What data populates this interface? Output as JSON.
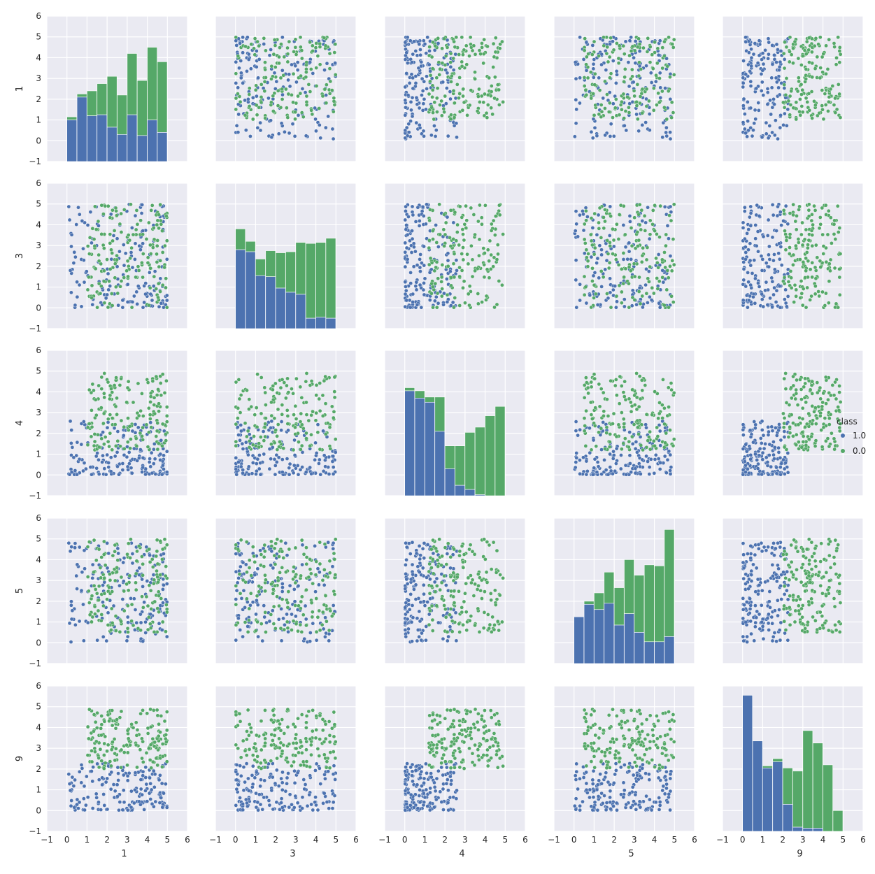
{
  "chart_data": {
    "type": "scatter",
    "title": "",
    "variables": [
      "1",
      "3",
      "4",
      "5",
      "9"
    ],
    "axis_labels": [
      "1",
      "3",
      "4",
      "5",
      "9"
    ],
    "tick_labels": [
      "−1",
      "0",
      "1",
      "2",
      "3",
      "4",
      "5",
      "6"
    ],
    "xlim": [
      -1,
      6
    ],
    "ylim": [
      -1,
      6
    ],
    "grid": true,
    "colors": {
      "class_1": "#4C72B0",
      "class_0": "#55A868",
      "background": "#EAEAF2",
      "grid": "#ffffff"
    },
    "legend": {
      "title": "class",
      "placement": "right",
      "entries": [
        {
          "label": "1.0",
          "color": "#4C72B0"
        },
        {
          "label": "0.0",
          "color": "#55A868"
        }
      ]
    },
    "diagonal_type": "stacked-histogram",
    "histograms": [
      {
        "variable": "1",
        "bins": [
          0.0,
          0.5,
          1.0,
          1.5,
          2.0,
          2.5,
          3.0,
          3.5,
          4.0,
          4.5
        ],
        "class_1": [
          1.0,
          2.1,
          1.2,
          1.25,
          0.65,
          0.3,
          1.25,
          0.25,
          1.0,
          0.4
        ],
        "class_0": [
          0.15,
          0.15,
          1.2,
          1.5,
          2.45,
          1.9,
          2.95,
          2.65,
          3.5,
          3.4
        ]
      },
      {
        "variable": "3",
        "bins": [
          0.0,
          0.5,
          1.0,
          1.5,
          2.0,
          2.5,
          3.0,
          3.5,
          4.0,
          4.5
        ],
        "class_1": [
          2.8,
          2.7,
          1.55,
          1.5,
          0.95,
          0.75,
          0.65,
          -0.5,
          -0.45,
          -0.5
        ],
        "class_0": [
          1.0,
          0.5,
          0.8,
          1.25,
          1.7,
          1.95,
          2.5,
          3.6,
          3.6,
          3.85
        ]
      },
      {
        "variable": "4",
        "bins": [
          0.0,
          0.5,
          1.0,
          1.5,
          2.0,
          2.5,
          3.0,
          3.5,
          4.0,
          4.5
        ],
        "class_1": [
          4.05,
          3.7,
          3.5,
          2.1,
          0.3,
          -0.5,
          -0.7,
          -0.95,
          -1.0,
          -1.0
        ],
        "class_0": [
          0.15,
          0.35,
          0.25,
          1.65,
          1.1,
          1.9,
          2.75,
          3.25,
          3.85,
          4.3
        ]
      },
      {
        "variable": "5",
        "bins": [
          0.0,
          0.5,
          1.0,
          1.5,
          2.0,
          2.5,
          3.0,
          3.5,
          4.0,
          4.5
        ],
        "class_1": [
          1.25,
          1.85,
          1.6,
          1.9,
          0.85,
          1.4,
          0.5,
          0.05,
          0.05,
          0.3
        ],
        "class_0": [
          0.0,
          0.15,
          0.8,
          1.5,
          1.8,
          2.6,
          2.75,
          3.7,
          3.65,
          5.15
        ]
      },
      {
        "variable": "9",
        "bins": [
          0.0,
          0.5,
          1.0,
          1.5,
          2.0,
          2.5,
          3.0,
          3.5,
          4.0,
          4.5
        ],
        "class_1": [
          5.55,
          3.35,
          2.05,
          2.35,
          0.3,
          -0.8,
          -0.85,
          -0.85,
          -1.0,
          -1.0
        ],
        "class_0": [
          0.0,
          0.0,
          0.1,
          0.15,
          1.75,
          2.7,
          4.7,
          4.1,
          3.2,
          1.0
        ]
      }
    ]
  }
}
